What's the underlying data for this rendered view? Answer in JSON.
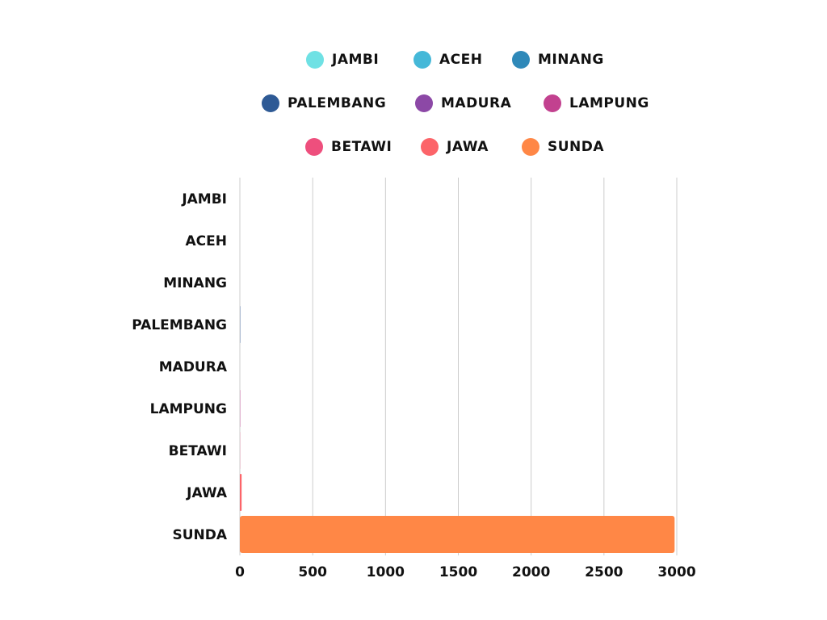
{
  "chart_data": {
    "type": "bar",
    "orientation": "horizontal",
    "categories": [
      "JAMBI",
      "ACEH",
      "MINANG",
      "PALEMBANG",
      "MADURA",
      "LAMPUNG",
      "BETAWI",
      "JAWA",
      "SUNDA"
    ],
    "values": [
      0,
      0,
      0,
      2,
      0,
      2,
      1,
      12,
      2985
    ],
    "colors": [
      "#6fe1e4",
      "#45b8d8",
      "#2f89b9",
      "#2e5a95",
      "#8c48a6",
      "#c2418f",
      "#ee4f7d",
      "#fc6469",
      "#ff8746"
    ],
    "legend": {
      "placement": "top",
      "entries": [
        "JAMBI",
        "ACEH",
        "MINANG",
        "PALEMBANG",
        "MADURA",
        "LAMPUNG",
        "BETAWI",
        "JAWA",
        "SUNDA"
      ]
    },
    "xlim": [
      0,
      3000
    ],
    "xticks": [
      "0",
      "500",
      "1000",
      "1500",
      "2000",
      "2500",
      "3000"
    ],
    "grid": "vertical",
    "gridColor": "#cccccc"
  }
}
